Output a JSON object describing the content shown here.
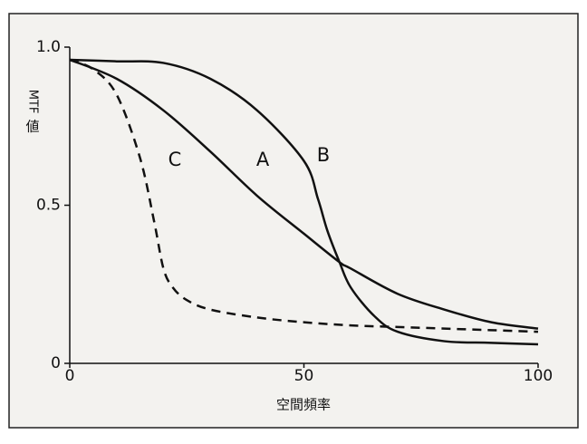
{
  "chart_data": {
    "type": "line",
    "x_label": "空間頻率",
    "y_label_rotated": "MTF",
    "y_label_upright": "値",
    "xlim": [
      0,
      100
    ],
    "xticks": [
      0,
      50,
      100
    ],
    "ylim": [
      0,
      1
    ],
    "yticks": [
      0,
      {
        "value": 0.5,
        "label": "0.5"
      },
      {
        "value": 1,
        "label": "1.0"
      }
    ],
    "series": [
      {
        "name": "A",
        "color": "#111111",
        "dash": false,
        "x": [
          0,
          10,
          20,
          30,
          40,
          50,
          57.6,
          60,
          70,
          80,
          90,
          100
        ],
        "values": [
          0.96,
          0.9,
          0.8,
          0.67,
          0.53,
          0.41,
          0.32,
          0.3,
          0.22,
          0.17,
          0.13,
          0.11
        ]
      },
      {
        "name": "B",
        "color": "#111111",
        "dash": false,
        "x": [
          0,
          10,
          20,
          30,
          40,
          50,
          53,
          55,
          57.6,
          60,
          65,
          70,
          80,
          90,
          100
        ],
        "values": [
          0.96,
          0.955,
          0.95,
          0.9,
          0.8,
          0.64,
          0.52,
          0.42,
          0.32,
          0.24,
          0.15,
          0.1,
          0.07,
          0.065,
          0.06
        ]
      },
      {
        "name": "C",
        "color": "#111111",
        "dash": true,
        "x": [
          0,
          5,
          10,
          15,
          18,
          20,
          22,
          25,
          30,
          40,
          50,
          60,
          70,
          80,
          90,
          100
        ],
        "values": [
          0.96,
          0.93,
          0.85,
          0.65,
          0.45,
          0.3,
          0.24,
          0.2,
          0.17,
          0.145,
          0.13,
          0.12,
          0.115,
          0.11,
          0.105,
          0.1
        ]
      }
    ]
  }
}
